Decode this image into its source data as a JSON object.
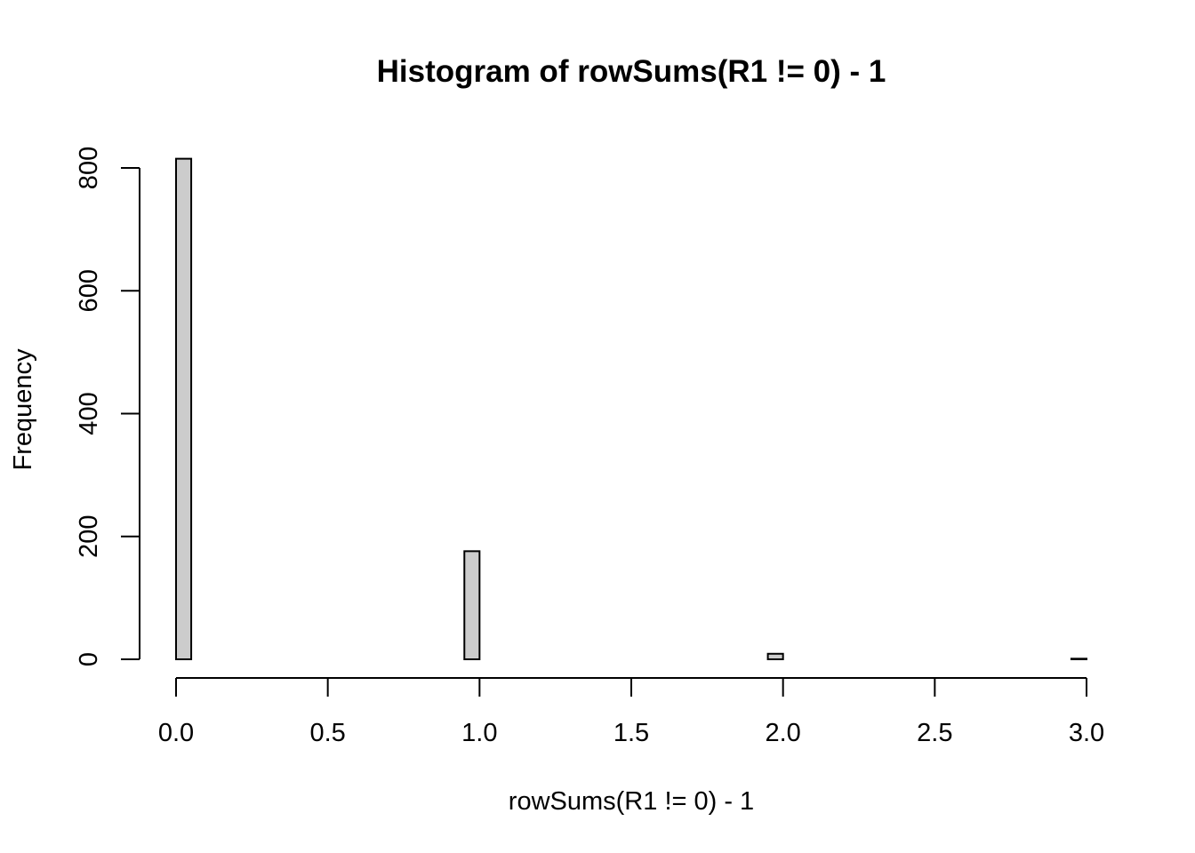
{
  "chart_data": {
    "type": "bar",
    "title": "Histogram of rowSums(R1 != 0) - 1",
    "xlabel": "rowSums(R1 != 0) - 1",
    "ylabel": "Frequency",
    "x_ticks": [
      "0.0",
      "0.5",
      "1.0",
      "1.5",
      "2.0",
      "2.5",
      "3.0"
    ],
    "y_ticks": [
      "0",
      "200",
      "400",
      "600",
      "800"
    ],
    "xlim": [
      0,
      3
    ],
    "ylim": [
      0,
      800
    ],
    "bin_width": 0.05,
    "bins": [
      {
        "start": 0.0,
        "end": 0.05,
        "value": 815
      },
      {
        "start": 0.95,
        "end": 1.0,
        "value": 176
      },
      {
        "start": 1.95,
        "end": 2.0,
        "value": 9
      },
      {
        "start": 2.95,
        "end": 3.0,
        "value": 1
      }
    ],
    "bar_color": "#cccccc",
    "grid": false,
    "legend": "none"
  }
}
